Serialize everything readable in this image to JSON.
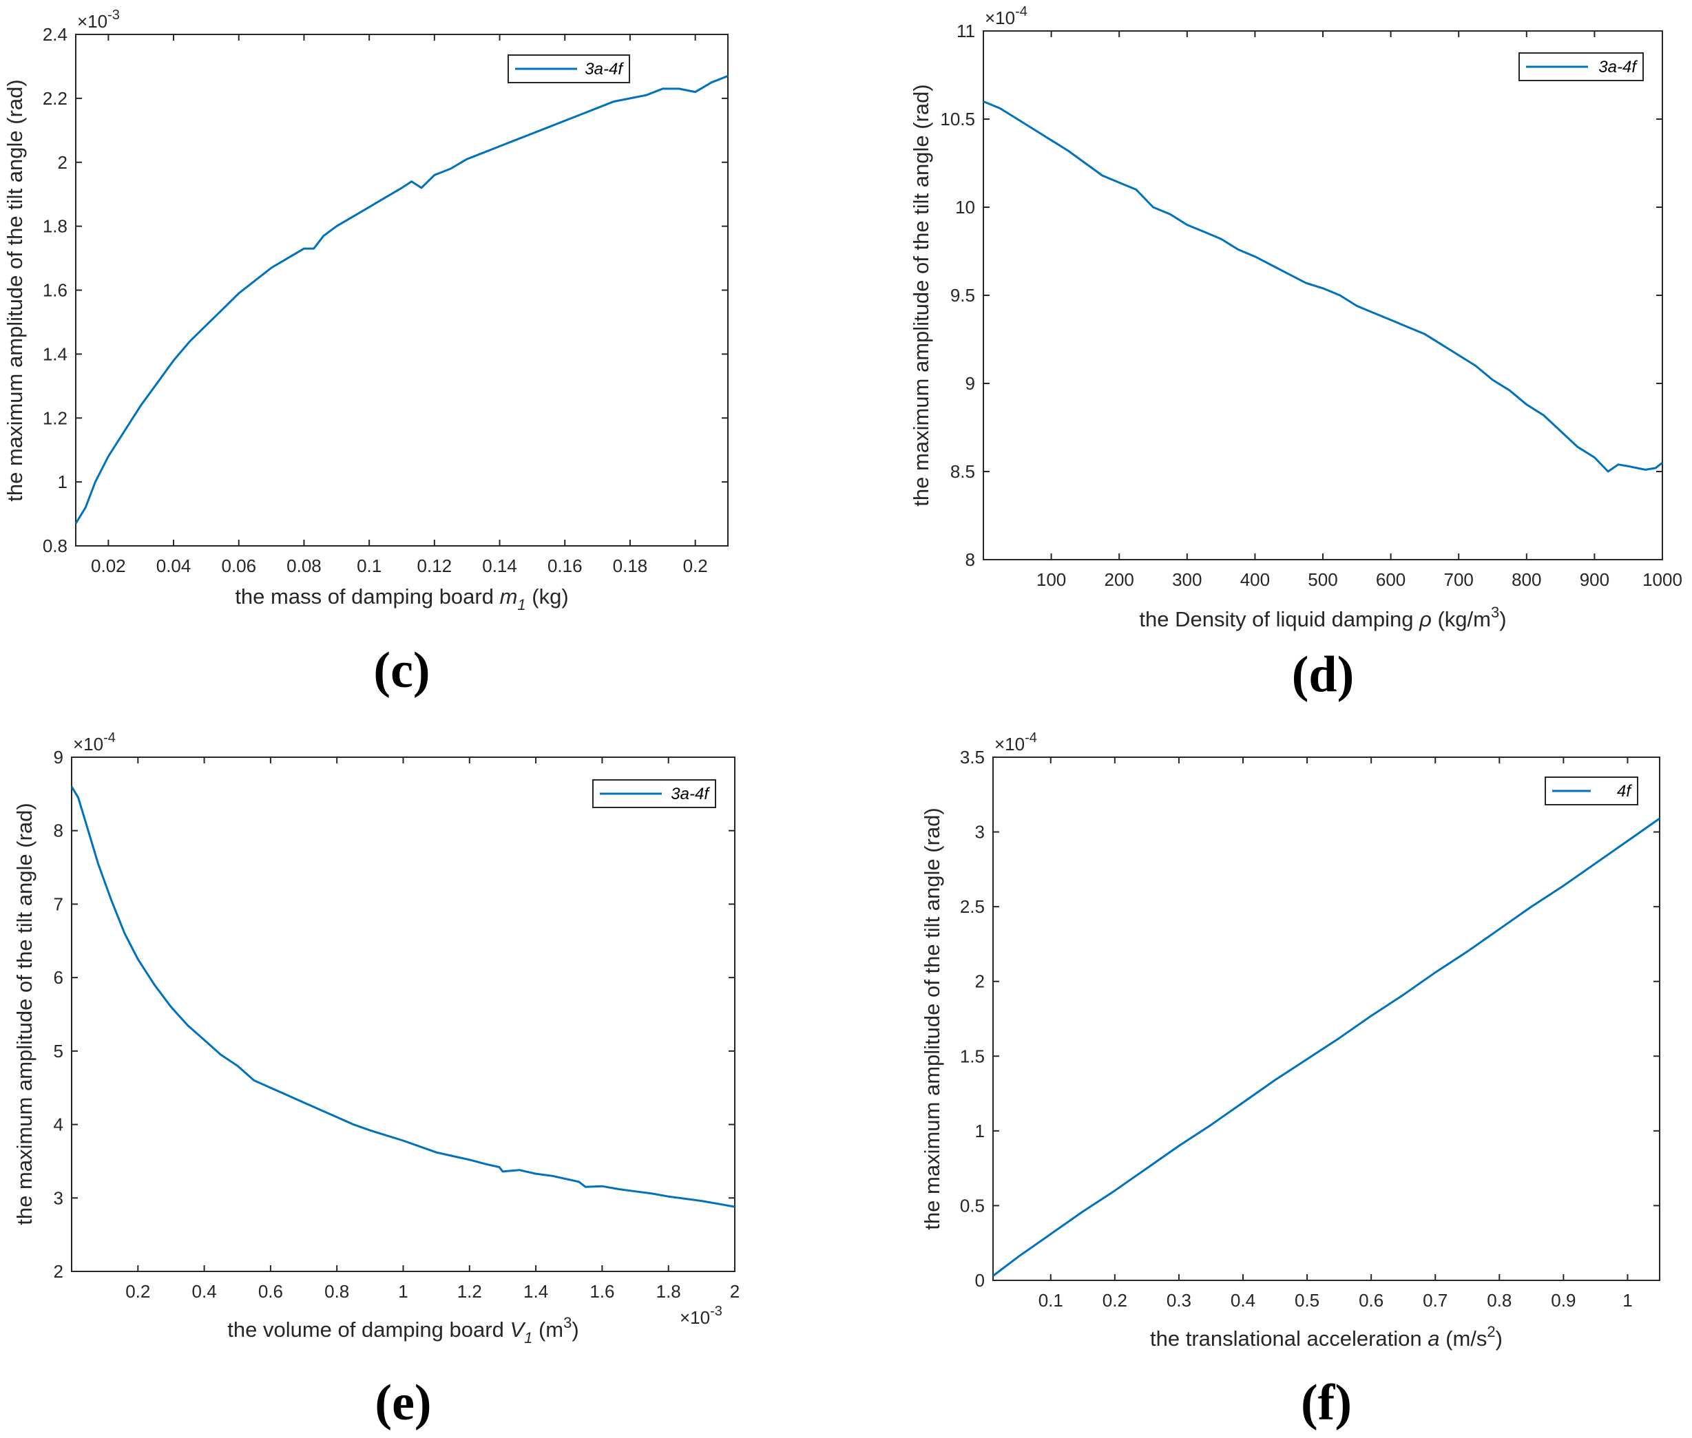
{
  "colors": {
    "series": "#0072bd",
    "axis": "#262626"
  },
  "chart_data": [
    {
      "panel": "(c)",
      "type": "line",
      "xlabel": "the mass of damping board",
      "xlabel_symbol": "m",
      "xlabel_sub": "1",
      "xlabel_unit": "(kg)",
      "ylabel": "the maximum amplitude of the tilt angle (rad)",
      "y_exponent_text": "×10",
      "y_exponent_power": "-3",
      "x_exponent_text": "",
      "x_exponent_power": "",
      "xlim": [
        0.01,
        0.21
      ],
      "ylim": [
        0.8,
        2.4
      ],
      "xticks": [
        0.02,
        0.04,
        0.06,
        0.08,
        0.1,
        0.12,
        0.14,
        0.16,
        0.18,
        0.2
      ],
      "xtick_labels": [
        "0.02",
        "0.04",
        "0.06",
        "0.08",
        "0.1",
        "0.12",
        "0.14",
        "0.16",
        "0.18",
        "0.2"
      ],
      "yticks": [
        0.8,
        1.0,
        1.2,
        1.4,
        1.6,
        1.8,
        2.0,
        2.2,
        2.4
      ],
      "ytick_labels": [
        "0.8",
        "1",
        "1.2",
        "1.4",
        "1.6",
        "1.8",
        "2",
        "2.2",
        "2.4"
      ],
      "legend": [
        "3a-4f"
      ],
      "series": [
        {
          "name": "3a-4f",
          "x": [
            0.01,
            0.013,
            0.016,
            0.02,
            0.025,
            0.03,
            0.035,
            0.04,
            0.045,
            0.05,
            0.055,
            0.06,
            0.065,
            0.07,
            0.075,
            0.08,
            0.083,
            0.086,
            0.09,
            0.095,
            0.1,
            0.105,
            0.11,
            0.113,
            0.116,
            0.12,
            0.125,
            0.13,
            0.135,
            0.14,
            0.145,
            0.15,
            0.155,
            0.16,
            0.165,
            0.17,
            0.175,
            0.18,
            0.185,
            0.19,
            0.195,
            0.2,
            0.205,
            0.21
          ],
          "y": [
            0.87,
            0.92,
            1.0,
            1.08,
            1.16,
            1.24,
            1.31,
            1.38,
            1.44,
            1.49,
            1.54,
            1.59,
            1.63,
            1.67,
            1.7,
            1.73,
            1.73,
            1.77,
            1.8,
            1.83,
            1.86,
            1.89,
            1.92,
            1.94,
            1.92,
            1.96,
            1.98,
            2.01,
            2.03,
            2.05,
            2.07,
            2.09,
            2.11,
            2.13,
            2.15,
            2.17,
            2.19,
            2.2,
            2.21,
            2.23,
            2.23,
            2.22,
            2.25,
            2.27
          ]
        }
      ]
    },
    {
      "panel": "(d)",
      "type": "line",
      "xlabel": "the Density of liquid damping",
      "xlabel_symbol": "ρ",
      "xlabel_sub": "",
      "xlabel_unit": "(kg/m",
      "xlabel_unit_sup": "3",
      "xlabel_unit_end": ")",
      "ylabel": "the maximum amplitude of the tilt angle (rad)",
      "y_exponent_text": "×10",
      "y_exponent_power": "-4",
      "x_exponent_text": "",
      "x_exponent_power": "",
      "xlim": [
        0,
        1000
      ],
      "ylim": [
        8,
        11
      ],
      "xticks": [
        100,
        200,
        300,
        400,
        500,
        600,
        700,
        800,
        900,
        1000
      ],
      "xtick_labels": [
        "100",
        "200",
        "300",
        "400",
        "500",
        "600",
        "700",
        "800",
        "900",
        "1000"
      ],
      "yticks": [
        8,
        8.5,
        9,
        9.5,
        10,
        10.5,
        11
      ],
      "ytick_labels": [
        "8",
        "8.5",
        "9",
        "9.5",
        "10",
        "10.5",
        "11"
      ],
      "legend": [
        "3a-4f"
      ],
      "series": [
        {
          "name": "3a-4f",
          "x": [
            0,
            25,
            50,
            75,
            100,
            125,
            150,
            175,
            200,
            225,
            250,
            275,
            300,
            325,
            350,
            375,
            400,
            425,
            450,
            475,
            500,
            525,
            550,
            575,
            600,
            625,
            650,
            675,
            700,
            725,
            750,
            775,
            800,
            825,
            850,
            875,
            900,
            920,
            935,
            950,
            975,
            990,
            1000
          ],
          "y": [
            10.6,
            10.56,
            10.5,
            10.44,
            10.38,
            10.32,
            10.25,
            10.18,
            10.14,
            10.1,
            10.0,
            9.96,
            9.9,
            9.86,
            9.82,
            9.76,
            9.72,
            9.67,
            9.62,
            9.57,
            9.54,
            9.5,
            9.44,
            9.4,
            9.36,
            9.32,
            9.28,
            9.22,
            9.16,
            9.1,
            9.02,
            8.96,
            8.88,
            8.82,
            8.73,
            8.64,
            8.58,
            8.5,
            8.54,
            8.53,
            8.51,
            8.52,
            8.55
          ]
        }
      ]
    },
    {
      "panel": "(e)",
      "type": "line",
      "xlabel": "the volume of damping board",
      "xlabel_symbol": "V",
      "xlabel_sub": "1",
      "xlabel_unit": "(m",
      "xlabel_unit_sup": "3",
      "xlabel_unit_end": ")",
      "ylabel": "the maximum amplitude of the tilt angle (rad)",
      "y_exponent_text": "×10",
      "y_exponent_power": "-4",
      "x_exponent_text": "×10",
      "x_exponent_power": "-3",
      "xlim": [
        0,
        2
      ],
      "ylim": [
        2,
        9
      ],
      "xticks": [
        0.2,
        0.4,
        0.6,
        0.8,
        1.0,
        1.2,
        1.4,
        1.6,
        1.8,
        2.0
      ],
      "xtick_labels": [
        "0.2",
        "0.4",
        "0.6",
        "0.8",
        "1",
        "1.2",
        "1.4",
        "1.6",
        "1.8",
        "2"
      ],
      "yticks": [
        2,
        3,
        4,
        5,
        6,
        7,
        8,
        9
      ],
      "ytick_labels": [
        "2",
        "3",
        "4",
        "5",
        "6",
        "7",
        "8",
        "9"
      ],
      "legend": [
        "3a-4f"
      ],
      "series": [
        {
          "name": "3a-4f",
          "x": [
            0.0,
            0.02,
            0.05,
            0.08,
            0.12,
            0.16,
            0.2,
            0.25,
            0.3,
            0.35,
            0.4,
            0.45,
            0.5,
            0.55,
            0.6,
            0.65,
            0.7,
            0.75,
            0.8,
            0.85,
            0.9,
            0.95,
            1.0,
            1.05,
            1.1,
            1.15,
            1.2,
            1.25,
            1.29,
            1.3,
            1.35,
            1.4,
            1.45,
            1.5,
            1.53,
            1.55,
            1.6,
            1.65,
            1.7,
            1.75,
            1.8,
            1.85,
            1.9,
            1.95,
            2.0
          ],
          "y": [
            8.6,
            8.45,
            8.0,
            7.55,
            7.05,
            6.6,
            6.25,
            5.9,
            5.6,
            5.35,
            5.15,
            4.95,
            4.8,
            4.6,
            4.5,
            4.4,
            4.3,
            4.2,
            4.1,
            4.0,
            3.92,
            3.85,
            3.78,
            3.7,
            3.62,
            3.57,
            3.52,
            3.46,
            3.42,
            3.36,
            3.38,
            3.33,
            3.3,
            3.25,
            3.22,
            3.15,
            3.16,
            3.12,
            3.09,
            3.06,
            3.02,
            2.99,
            2.96,
            2.92,
            2.88
          ]
        }
      ]
    },
    {
      "panel": "(f)",
      "type": "line",
      "xlabel": "the translational acceleration",
      "xlabel_symbol": "a",
      "xlabel_sub": "",
      "xlabel_unit": "(m/s",
      "xlabel_unit_sup": "2",
      "xlabel_unit_end": ")",
      "ylabel": "the maximum amplitude of the tilt angle (rad)",
      "y_exponent_text": "×10",
      "y_exponent_power": "-4",
      "x_exponent_text": "",
      "x_exponent_power": "",
      "xlim": [
        0.01,
        1.05
      ],
      "ylim": [
        0,
        3.5
      ],
      "xticks": [
        0.1,
        0.2,
        0.3,
        0.4,
        0.5,
        0.6,
        0.7,
        0.8,
        0.9,
        1.0
      ],
      "xtick_labels": [
        "0.1",
        "0.2",
        "0.3",
        "0.4",
        "0.5",
        "0.6",
        "0.7",
        "0.8",
        "0.9",
        "1"
      ],
      "yticks": [
        0,
        0.5,
        1.0,
        1.5,
        2.0,
        2.5,
        3.0,
        3.5
      ],
      "ytick_labels": [
        "0",
        "0.5",
        "1",
        "1.5",
        "2",
        "2.5",
        "3",
        "3.5"
      ],
      "legend": [
        "4f"
      ],
      "series": [
        {
          "name": "4f",
          "x": [
            0.01,
            0.05,
            0.1,
            0.15,
            0.2,
            0.25,
            0.3,
            0.35,
            0.4,
            0.45,
            0.5,
            0.55,
            0.6,
            0.65,
            0.7,
            0.75,
            0.8,
            0.85,
            0.9,
            0.95,
            1.0,
            1.05
          ],
          "y": [
            0.03,
            0.16,
            0.31,
            0.46,
            0.6,
            0.75,
            0.9,
            1.04,
            1.19,
            1.34,
            1.48,
            1.62,
            1.77,
            1.91,
            2.06,
            2.2,
            2.35,
            2.5,
            2.64,
            2.79,
            2.94,
            3.09
          ]
        }
      ]
    }
  ]
}
